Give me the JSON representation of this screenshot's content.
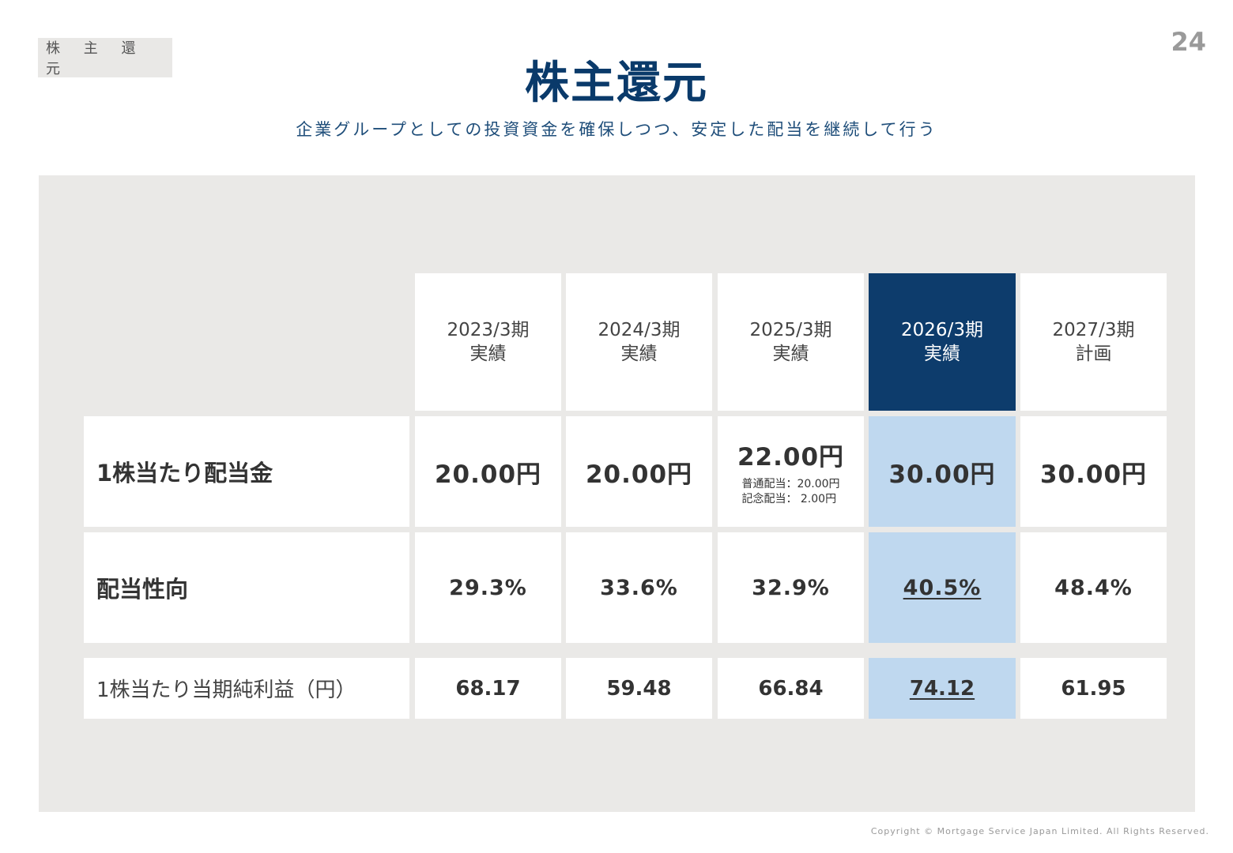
{
  "header": {
    "section_tag": "株 主 還 元",
    "page_number": "24",
    "title": "株主還元",
    "subtitle": "企業グループとしての投資資金を確保しつつ、安定した配当を継続して行う"
  },
  "table": {
    "columns": [
      {
        "period": "2023/3期",
        "status": "実績",
        "highlighted": false
      },
      {
        "period": "2024/3期",
        "status": "実績",
        "highlighted": false
      },
      {
        "period": "2025/3期",
        "status": "実績",
        "highlighted": false
      },
      {
        "period": "2026/3期",
        "status": "実績",
        "highlighted": true
      },
      {
        "period": "2027/3期",
        "status": "計画",
        "highlighted": false
      }
    ],
    "rows": {
      "dividend": {
        "label": "1株当たり配当金",
        "values": [
          "20.00円",
          "20.00円",
          "22.00円",
          "30.00円",
          "30.00円"
        ],
        "notes": {
          "regular": "普通配当：20.00円",
          "commemorative": "記念配当： 2.00円"
        }
      },
      "payout": {
        "label": "配当性向",
        "values": [
          "29.3%",
          "33.6%",
          "32.9%",
          "40.5%",
          "48.4%"
        ]
      },
      "eps": {
        "label": "1株当たり当期純利益（円）",
        "values": [
          "68.17",
          "59.48",
          "66.84",
          "74.12",
          "61.95"
        ]
      }
    },
    "colors": {
      "highlight_header": "#0d3c6c",
      "highlight_cell": "#bfd8ef",
      "panel": "#eae9e7",
      "title": "#0a3a6a"
    }
  },
  "footer": {
    "copyright": "Copyright © Mortgage Service Japan Limited. All Rights Reserved."
  }
}
